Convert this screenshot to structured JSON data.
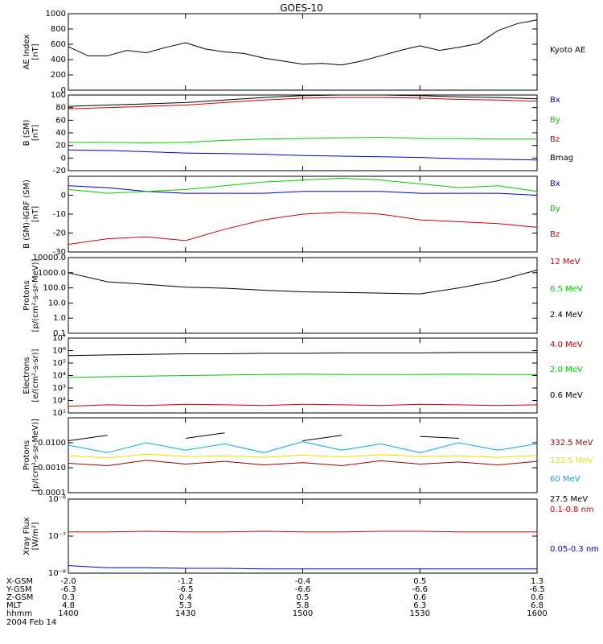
{
  "title": "GOES-10",
  "date_label": "2004 Feb 14",
  "x_rows": [
    {
      "label": "X-GSM",
      "values": [
        "-2.0",
        "-1.2",
        "-0.4",
        "0.5",
        "1.3"
      ]
    },
    {
      "label": "Y-GSM",
      "values": [
        "-6.3",
        "-6.5",
        "-6.6",
        "-6.6",
        "-6.5"
      ]
    },
    {
      "label": "Z-GSM",
      "values": [
        "0.3",
        "0.4",
        "0.5",
        "0.6",
        "0.6"
      ]
    },
    {
      "label": "MLT",
      "values": [
        "4.8",
        "5.3",
        "5.8",
        "6.3",
        "6.8"
      ]
    },
    {
      "label": "hhmm",
      "values": [
        "1400",
        "1430",
        "1500",
        "1530",
        "1600"
      ]
    }
  ],
  "chart_data": [
    {
      "type": "line",
      "ylabel": [
        "AE Index",
        "[nT]"
      ],
      "ylim": [
        0,
        1000
      ],
      "scale": "linear",
      "yticks": [
        0,
        200,
        400,
        600,
        800,
        1000
      ],
      "ytick_labels": [
        "0",
        "200",
        "400",
        "600",
        "800",
        "1000"
      ],
      "x": [
        1400,
        1405,
        1410,
        1415,
        1420,
        1425,
        1430,
        1435,
        1440,
        1445,
        1450,
        1455,
        1500,
        1505,
        1510,
        1515,
        1520,
        1525,
        1530,
        1535,
        1540,
        1545,
        1550,
        1555,
        1600
      ],
      "series": [
        {
          "name": "Kyoto AE",
          "color": "#000000",
          "values": [
            570,
            450,
            450,
            520,
            490,
            560,
            620,
            540,
            500,
            480,
            420,
            380,
            340,
            350,
            330,
            380,
            450,
            520,
            580,
            520,
            560,
            610,
            780,
            870,
            920
          ]
        }
      ]
    },
    {
      "type": "line",
      "ylabel": [
        "B (SM)",
        "[nT]"
      ],
      "ylim": [
        -20,
        100
      ],
      "scale": "linear",
      "yticks": [
        -20,
        0,
        20,
        40,
        60,
        80,
        100
      ],
      "ytick_labels": [
        "-20",
        "0",
        "20",
        "40",
        "60",
        "80",
        "100"
      ],
      "x": [
        1400,
        1410,
        1420,
        1430,
        1440,
        1450,
        1500,
        1510,
        1520,
        1530,
        1540,
        1550,
        1600
      ],
      "series": [
        {
          "name": "Bx",
          "color": "#0000cc",
          "values": [
            13,
            12,
            10,
            8,
            7,
            6,
            4,
            3,
            2,
            1,
            -1,
            -2,
            -3
          ]
        },
        {
          "name": "By",
          "color": "#00cc00",
          "values": [
            25,
            25,
            24,
            25,
            28,
            30,
            31,
            32,
            33,
            31,
            31,
            30,
            30
          ]
        },
        {
          "name": "Bz",
          "color": "#cc0000",
          "values": [
            78,
            80,
            82,
            84,
            88,
            92,
            95,
            96,
            96,
            95,
            93,
            92,
            90
          ]
        },
        {
          "name": "Bmag",
          "color": "#000000",
          "values": [
            82,
            84,
            86,
            88,
            92,
            96,
            99,
            100,
            100,
            99,
            97,
            96,
            94
          ]
        }
      ]
    },
    {
      "type": "line",
      "ylabel": [
        "B (SM)-IGRF (SM)",
        "[nT]"
      ],
      "ylim": [
        -30,
        10
      ],
      "scale": "linear",
      "yticks": [
        -30,
        -20,
        -10,
        0
      ],
      "ytick_labels": [
        "-30",
        "-20",
        "-10",
        "0"
      ],
      "x": [
        1400,
        1410,
        1420,
        1430,
        1440,
        1450,
        1500,
        1510,
        1520,
        1530,
        1540,
        1550,
        1600
      ],
      "series": [
        {
          "name": "Bx",
          "color": "#0000cc",
          "values": [
            5,
            4,
            2,
            1,
            1,
            1,
            2,
            2,
            2,
            1,
            1,
            1,
            0
          ]
        },
        {
          "name": "By",
          "color": "#00cc00",
          "values": [
            3,
            1,
            2,
            3,
            5,
            7,
            8,
            9,
            8,
            6,
            4,
            5,
            2
          ]
        },
        {
          "name": "Bz",
          "color": "#cc0000",
          "values": [
            -26,
            -23,
            -22,
            -24,
            -18,
            -13,
            -10,
            -9,
            -10,
            -13,
            -14,
            -15,
            -17
          ]
        }
      ]
    },
    {
      "type": "line",
      "ylabel": [
        "Protons",
        "[p/(cm²-s-sr-MeV)]"
      ],
      "ylim": [
        0.1,
        10000
      ],
      "scale": "log",
      "yticks": [
        0.1,
        1,
        10,
        100,
        1000,
        10000
      ],
      "ytick_labels": [
        "0.1",
        "1.0",
        "10.0",
        "100.0",
        "1000.0",
        "10000.0"
      ],
      "x": [
        1400,
        1410,
        1420,
        1430,
        1440,
        1450,
        1500,
        1510,
        1520,
        1530,
        1540,
        1550,
        1600
      ],
      "series": [
        {
          "name": "12 MeV",
          "color": "#cc0000",
          "values": [
            null,
            null,
            null,
            null,
            null,
            null,
            null,
            null,
            null,
            null,
            null,
            null,
            null
          ]
        },
        {
          "name": "6.5 MeV",
          "color": "#00cc00",
          "values": [
            null,
            null,
            null,
            null,
            null,
            null,
            null,
            null,
            null,
            null,
            null,
            null,
            null
          ]
        },
        {
          "name": "2.4 MeV",
          "color": "#000000",
          "values": [
            1000,
            250,
            170,
            110,
            95,
            70,
            55,
            50,
            45,
            40,
            100,
            300,
            1500
          ]
        }
      ]
    },
    {
      "type": "line",
      "ylabel": [
        "Electrons",
        "[e/(cm²-s-sr)]"
      ],
      "ylim": [
        10,
        10000000
      ],
      "scale": "log",
      "yticks": [
        10,
        100,
        1000,
        10000,
        100000,
        1000000,
        10000000
      ],
      "ytick_labels": [
        "10¹",
        "10²",
        "10³",
        "10⁴",
        "10⁵",
        "10⁶",
        "10⁷"
      ],
      "x": [
        1400,
        1410,
        1420,
        1430,
        1440,
        1450,
        1500,
        1510,
        1520,
        1530,
        1540,
        1550,
        1600
      ],
      "series": [
        {
          "name": "4.0 MeV",
          "color": "#cc0000",
          "values": [
            35,
            45,
            40,
            50,
            45,
            40,
            50,
            45,
            40,
            50,
            45,
            40,
            45
          ]
        },
        {
          "name": "2.0 MeV",
          "color": "#00cc00",
          "values": [
            7000,
            8000,
            9000,
            10000,
            11000,
            12000,
            13000,
            12000,
            12000,
            12000,
            13000,
            12000,
            12000
          ]
        },
        {
          "name": "0.6 MeV",
          "color": "#000000",
          "values": [
            400000,
            450000,
            500000,
            550000,
            550000,
            600000,
            600000,
            650000,
            650000,
            650000,
            700000,
            700000,
            700000
          ]
        }
      ]
    },
    {
      "type": "line",
      "ylabel": [
        "Protons",
        "[p/(cm²-s-sr-MeV)]"
      ],
      "ylim": [
        0.0001,
        0.1
      ],
      "scale": "log",
      "yticks": [
        0.0001,
        0.001,
        0.01
      ],
      "ytick_labels": [
        "0.0001",
        "0.0010",
        "0.0100"
      ],
      "x": [
        1400,
        1410,
        1420,
        1430,
        1440,
        1450,
        1500,
        1510,
        1520,
        1530,
        1540,
        1550,
        1600
      ],
      "series": [
        {
          "name": "332.5 MeV",
          "color": "#990000",
          "values": [
            0.0015,
            0.0012,
            0.002,
            0.0014,
            0.0018,
            0.0013,
            0.0016,
            0.0012,
            0.0019,
            0.0014,
            0.0017,
            0.0013,
            0.0018
          ]
        },
        {
          "name": "122.5 MeV",
          "color": "#eedd00",
          "values": [
            0.003,
            0.0025,
            0.0035,
            0.0028,
            0.003,
            0.0026,
            0.0032,
            0.0027,
            0.0033,
            0.0028,
            0.003,
            0.0026,
            0.0031
          ]
        },
        {
          "name": "60 MeV",
          "color": "#00aaee",
          "values": [
            0.008,
            0.004,
            0.01,
            0.005,
            0.009,
            0.004,
            0.011,
            0.005,
            0.009,
            0.004,
            0.01,
            0.005,
            0.009
          ]
        },
        {
          "name": "27.5 MeV",
          "color": "#000000",
          "values": [
            0.012,
            0.02,
            null,
            0.015,
            0.025,
            null,
            0.012,
            0.02,
            null,
            0.018,
            0.015,
            null,
            0.02
          ]
        }
      ]
    },
    {
      "type": "line",
      "ylabel": [
        "Xray Flux",
        "[W/m²]"
      ],
      "ylim": [
        1e-08,
        1e-06
      ],
      "scale": "log",
      "yticks": [
        1e-08,
        1e-07,
        1e-06
      ],
      "ytick_labels": [
        "10⁻⁸",
        "10⁻⁷",
        "10⁻⁶"
      ],
      "x": [
        1400,
        1410,
        1420,
        1430,
        1440,
        1450,
        1500,
        1510,
        1520,
        1530,
        1540,
        1550,
        1600
      ],
      "series": [
        {
          "name": "0.1-0.8 nm",
          "color": "#cc0000",
          "values": [
            1.3e-07,
            1.3e-07,
            1.35e-07,
            1.3e-07,
            1.3e-07,
            1.35e-07,
            1.3e-07,
            1.3e-07,
            1.35e-07,
            1.35e-07,
            1.3e-07,
            1.3e-07,
            1.3e-07
          ]
        },
        {
          "name": "0.05-0.3 nm",
          "color": "#0000cc",
          "values": [
            1.6e-08,
            1.4e-08,
            1.4e-08,
            1.35e-08,
            1.35e-08,
            1.3e-08,
            1.3e-08,
            1.3e-08,
            1.3e-08,
            1.3e-08,
            1.3e-08,
            1.3e-08,
            1.3e-08
          ]
        }
      ]
    }
  ]
}
